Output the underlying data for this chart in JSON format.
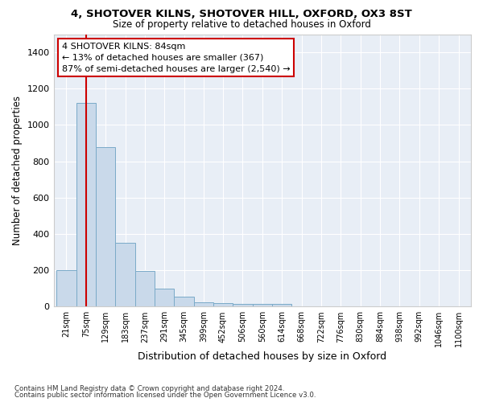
{
  "title_line1": "4, SHOTOVER KILNS, SHOTOVER HILL, OXFORD, OX3 8ST",
  "title_line2": "Size of property relative to detached houses in Oxford",
  "xlabel": "Distribution of detached houses by size in Oxford",
  "ylabel": "Number of detached properties",
  "footnote1": "Contains HM Land Registry data © Crown copyright and database right 2024.",
  "footnote2": "Contains public sector information licensed under the Open Government Licence v3.0.",
  "annotation_line1": "4 SHOTOVER KILNS: 84sqm",
  "annotation_line2": "← 13% of detached houses are smaller (367)",
  "annotation_line3": "87% of semi-detached houses are larger (2,540) →",
  "bar_color": "#c9d9ea",
  "bar_edge_color": "#7aaac8",
  "ref_line_color": "#cc0000",
  "ref_line_x": 75,
  "categories": [
    21,
    75,
    129,
    183,
    237,
    291,
    345,
    399,
    452,
    506,
    560,
    614,
    668,
    722,
    776,
    830,
    884,
    938,
    992,
    1046,
    1100
  ],
  "tick_labels": [
    "21sqm",
    "75sqm",
    "129sqm",
    "183sqm",
    "237sqm",
    "291sqm",
    "345sqm",
    "399sqm",
    "452sqm",
    "506sqm",
    "560sqm",
    "614sqm",
    "668sqm",
    "722sqm",
    "776sqm",
    "830sqm",
    "884sqm",
    "938sqm",
    "992sqm",
    "1046sqm",
    "1100sqm"
  ],
  "values": [
    200,
    1120,
    880,
    350,
    195,
    100,
    55,
    25,
    20,
    15,
    15,
    15,
    0,
    0,
    0,
    0,
    0,
    0,
    0,
    0,
    0
  ],
  "ylim": [
    0,
    1500
  ],
  "yticks": [
    0,
    200,
    400,
    600,
    800,
    1000,
    1200,
    1400
  ],
  "background_color": "#ffffff",
  "plot_bg_color": "#e8eef6",
  "grid_color": "#ffffff",
  "annotation_box_color": "#ffffff",
  "annotation_box_edge": "#cc0000"
}
